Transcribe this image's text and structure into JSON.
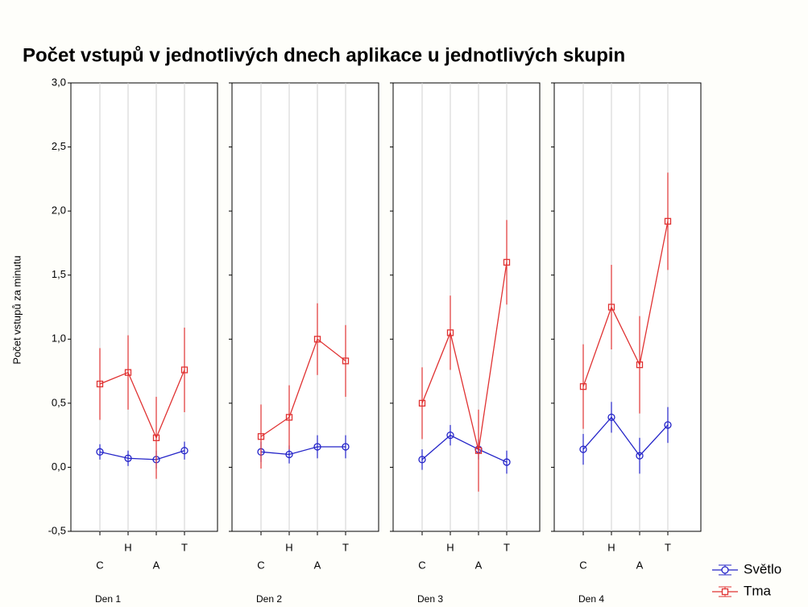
{
  "chart_data": {
    "type": "line",
    "title": "Počet vstupů v jednotlivých dnech aplikace u jednotlivých skupin",
    "y_label": "Počet vstupů za minutu",
    "categories": [
      "C",
      "H",
      "A",
      "T"
    ],
    "ylim": [
      -0.5,
      3.0
    ],
    "yticks": [
      {
        "value": -0.5,
        "label": "-0,5"
      },
      {
        "value": 0,
        "label": "0,0"
      },
      {
        "value": 0.5,
        "label": "0,5"
      },
      {
        "value": 1.0,
        "label": "1,0"
      },
      {
        "value": 1.5,
        "label": "1,5"
      },
      {
        "value": 2.0,
        "label": "2,0"
      },
      {
        "value": 2.5,
        "label": "2,5"
      },
      {
        "value": 3.0,
        "label": "3,0"
      }
    ],
    "grid": "x",
    "legend": "bottom-right",
    "legend_names": [
      "Světlo",
      "Tma"
    ],
    "colors": [
      "#2323c8",
      "#e03232"
    ],
    "markers": [
      "circle",
      "square"
    ],
    "panels": [
      {
        "label": "Den 1",
        "series": [
          {
            "values": [
              0.12,
              0.07,
              0.06,
              0.13
            ],
            "errors": [
              0.06,
              0.06,
              0.07,
              0.07
            ]
          },
          {
            "values": [
              0.65,
              0.74,
              0.23,
              0.76
            ],
            "errors": [
              0.28,
              0.29,
              0.32,
              0.33
            ]
          }
        ]
      },
      {
        "label": "Den 2",
        "series": [
          {
            "values": [
              0.12,
              0.1,
              0.16,
              0.16
            ],
            "errors": [
              0.08,
              0.07,
              0.09,
              0.09
            ]
          },
          {
            "values": [
              0.24,
              0.39,
              1.0,
              0.83
            ],
            "errors": [
              0.25,
              0.25,
              0.28,
              0.28
            ]
          }
        ]
      },
      {
        "label": "Den 3",
        "series": [
          {
            "values": [
              0.06,
              0.25,
              0.14,
              0.04
            ],
            "errors": [
              0.08,
              0.08,
              0.08,
              0.09
            ]
          },
          {
            "values": [
              0.5,
              1.05,
              0.13,
              1.6
            ],
            "errors": [
              0.28,
              0.29,
              0.32,
              0.33
            ]
          }
        ]
      },
      {
        "label": "Den 4",
        "series": [
          {
            "values": [
              0.14,
              0.39,
              0.09,
              0.33
            ],
            "errors": [
              0.12,
              0.12,
              0.14,
              0.14
            ]
          },
          {
            "values": [
              0.63,
              1.25,
              0.8,
              1.92
            ],
            "errors": [
              0.33,
              0.33,
              0.38,
              0.38
            ]
          }
        ]
      }
    ]
  }
}
